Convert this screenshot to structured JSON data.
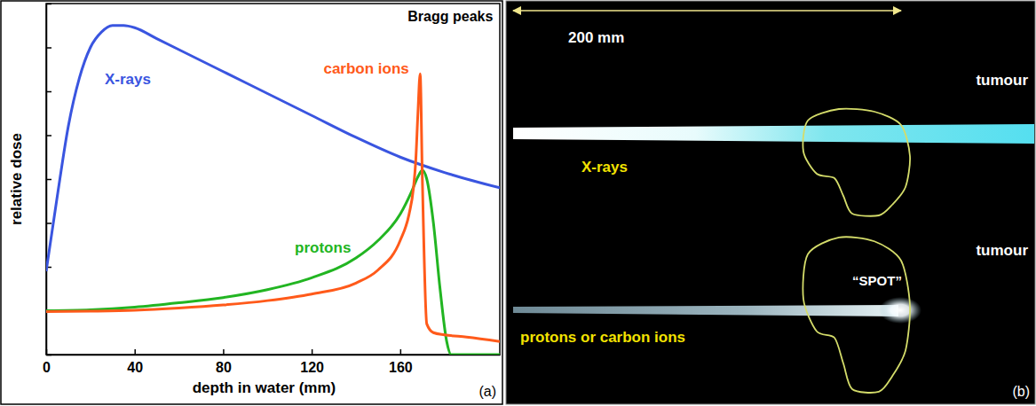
{
  "chart_data": {
    "type": "line",
    "x_label": "depth in water (mm)",
    "y_label": "relative dose",
    "annotations": [
      "Bragg peaks"
    ],
    "panel_label": "(a)",
    "xlim": [
      0,
      205
    ],
    "ylim": [
      0,
      8
    ],
    "xticks": [
      0,
      40,
      80,
      120,
      160
    ],
    "yticks": [
      0,
      1,
      2,
      3,
      4,
      5,
      6,
      7,
      8
    ],
    "tick_labels": "x",
    "grid": false,
    "series": [
      {
        "name": "X-rays",
        "color": "#3a55e0",
        "x": [
          0,
          5,
          10,
          15,
          20,
          25,
          30,
          35,
          40,
          50,
          60,
          80,
          100,
          120,
          140,
          160,
          180,
          205
        ],
        "values": [
          1.9,
          3.6,
          5.2,
          6.3,
          7.0,
          7.35,
          7.5,
          7.5,
          7.45,
          7.2,
          6.95,
          6.45,
          5.95,
          5.45,
          4.95,
          4.5,
          4.15,
          3.8
        ]
      },
      {
        "name": "protons",
        "color": "#22b522",
        "x": [
          0,
          20,
          40,
          60,
          80,
          100,
          120,
          140,
          150,
          160,
          165,
          168,
          170,
          172,
          175,
          178,
          181,
          183,
          205
        ],
        "values": [
          1.0,
          1.02,
          1.08,
          1.18,
          1.3,
          1.48,
          1.75,
          2.2,
          2.6,
          3.2,
          3.7,
          4.05,
          4.2,
          4.0,
          3.0,
          1.5,
          0.3,
          0,
          0
        ]
      },
      {
        "name": "carbon ions",
        "color": "#ff5a1a",
        "x": [
          0,
          20,
          40,
          60,
          80,
          100,
          120,
          140,
          150,
          160,
          164,
          166,
          167,
          168,
          169,
          170,
          172,
          175,
          180,
          190,
          205
        ],
        "values": [
          0.98,
          0.99,
          1.01,
          1.06,
          1.13,
          1.23,
          1.38,
          1.63,
          1.93,
          2.6,
          3.2,
          3.8,
          4.4,
          5.5,
          6.4,
          4.0,
          0.7,
          0.5,
          0.45,
          0.4,
          0.3
        ]
      }
    ]
  },
  "diagram": {
    "scale": {
      "label": "200 mm",
      "value": 200
    },
    "beams": [
      "X-rays",
      "protons or carbon ions"
    ],
    "target_label": "tumour",
    "spot_label": "“SPOT”",
    "panel_label": "(b)"
  }
}
